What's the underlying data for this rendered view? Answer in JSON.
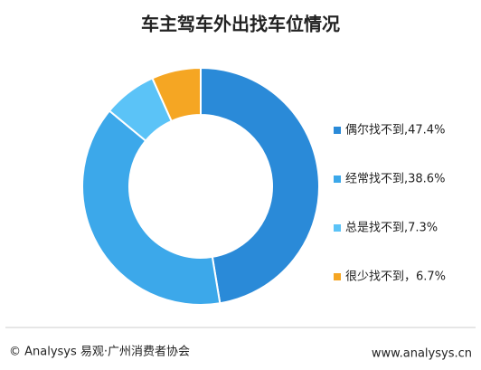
{
  "chart_data": {
    "type": "donut",
    "title": "车主驾车外出找车位情况",
    "values": [
      47.4,
      38.6,
      7.3,
      6.7
    ],
    "value_labels": [
      "偶尔找不到,47.4%",
      "经常找不到,38.6%",
      "总是找不到,7.3%",
      "很少找不到，6.7%"
    ],
    "colors": [
      "#2a8ad8",
      "#3ca8ea",
      "#5bc3f7",
      "#f5a623"
    ]
  },
  "footer": {
    "source": "© Analysys 易观·广州消费者协会",
    "url": "www.analysys.cn"
  }
}
